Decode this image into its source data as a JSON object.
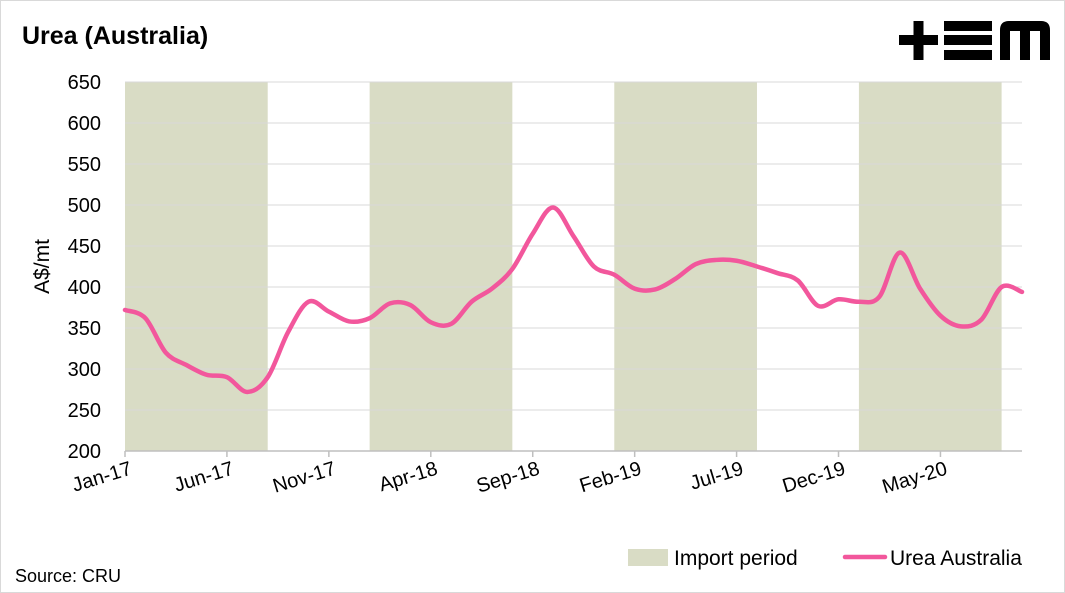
{
  "title": "Urea (Australia)",
  "source": "Source: CRU",
  "logo": {
    "text": "+EM",
    "color": "#000000"
  },
  "chart_data": {
    "type": "line",
    "ylabel": "A$/mt",
    "xlabel": "",
    "ylim": [
      200,
      650
    ],
    "yticks": [
      200,
      250,
      300,
      350,
      400,
      450,
      500,
      550,
      600,
      650
    ],
    "xlim": [
      0,
      44
    ],
    "xticks": [
      {
        "index": 0,
        "label": "Jan-17"
      },
      {
        "index": 5,
        "label": "Jun-17"
      },
      {
        "index": 10,
        "label": "Nov-17"
      },
      {
        "index": 15,
        "label": "Apr-18"
      },
      {
        "index": 20,
        "label": "Sep-18"
      },
      {
        "index": 25,
        "label": "Feb-19"
      },
      {
        "index": 30,
        "label": "Jul-19"
      },
      {
        "index": 35,
        "label": "Dec-19"
      },
      {
        "index": 40,
        "label": "May-20"
      }
    ],
    "import_periods": [
      [
        0,
        7
      ],
      [
        12,
        19
      ],
      [
        24,
        31
      ],
      [
        36,
        43
      ]
    ],
    "legend": {
      "placement": "bottom-right",
      "import_label": "Import period",
      "series_label": "Urea Australia"
    },
    "colors": {
      "series": "#f2579c",
      "import": "#d9dcc5",
      "grid": "#d9d9d9",
      "axis": "#bfbfbf"
    },
    "series": [
      {
        "name": "Urea Australia",
        "x": [
          0,
          1,
          2,
          3,
          4,
          5,
          6,
          7,
          8,
          9,
          10,
          11,
          12,
          13,
          14,
          15,
          16,
          17,
          18,
          19,
          20,
          21,
          22,
          23,
          24,
          25,
          26,
          27,
          28,
          29,
          30,
          31,
          32,
          33,
          34,
          35,
          36,
          37,
          38,
          39,
          40,
          41,
          42,
          43,
          44
        ],
        "values": [
          372,
          362,
          320,
          305,
          293,
          290,
          272,
          290,
          345,
          382,
          370,
          358,
          362,
          380,
          378,
          357,
          355,
          382,
          398,
          422,
          465,
          497,
          462,
          425,
          415,
          398,
          397,
          410,
          428,
          433,
          432,
          425,
          417,
          408,
          377,
          385,
          382,
          388,
          442,
          398,
          365,
          352,
          360,
          400,
          394
        ]
      }
    ]
  }
}
